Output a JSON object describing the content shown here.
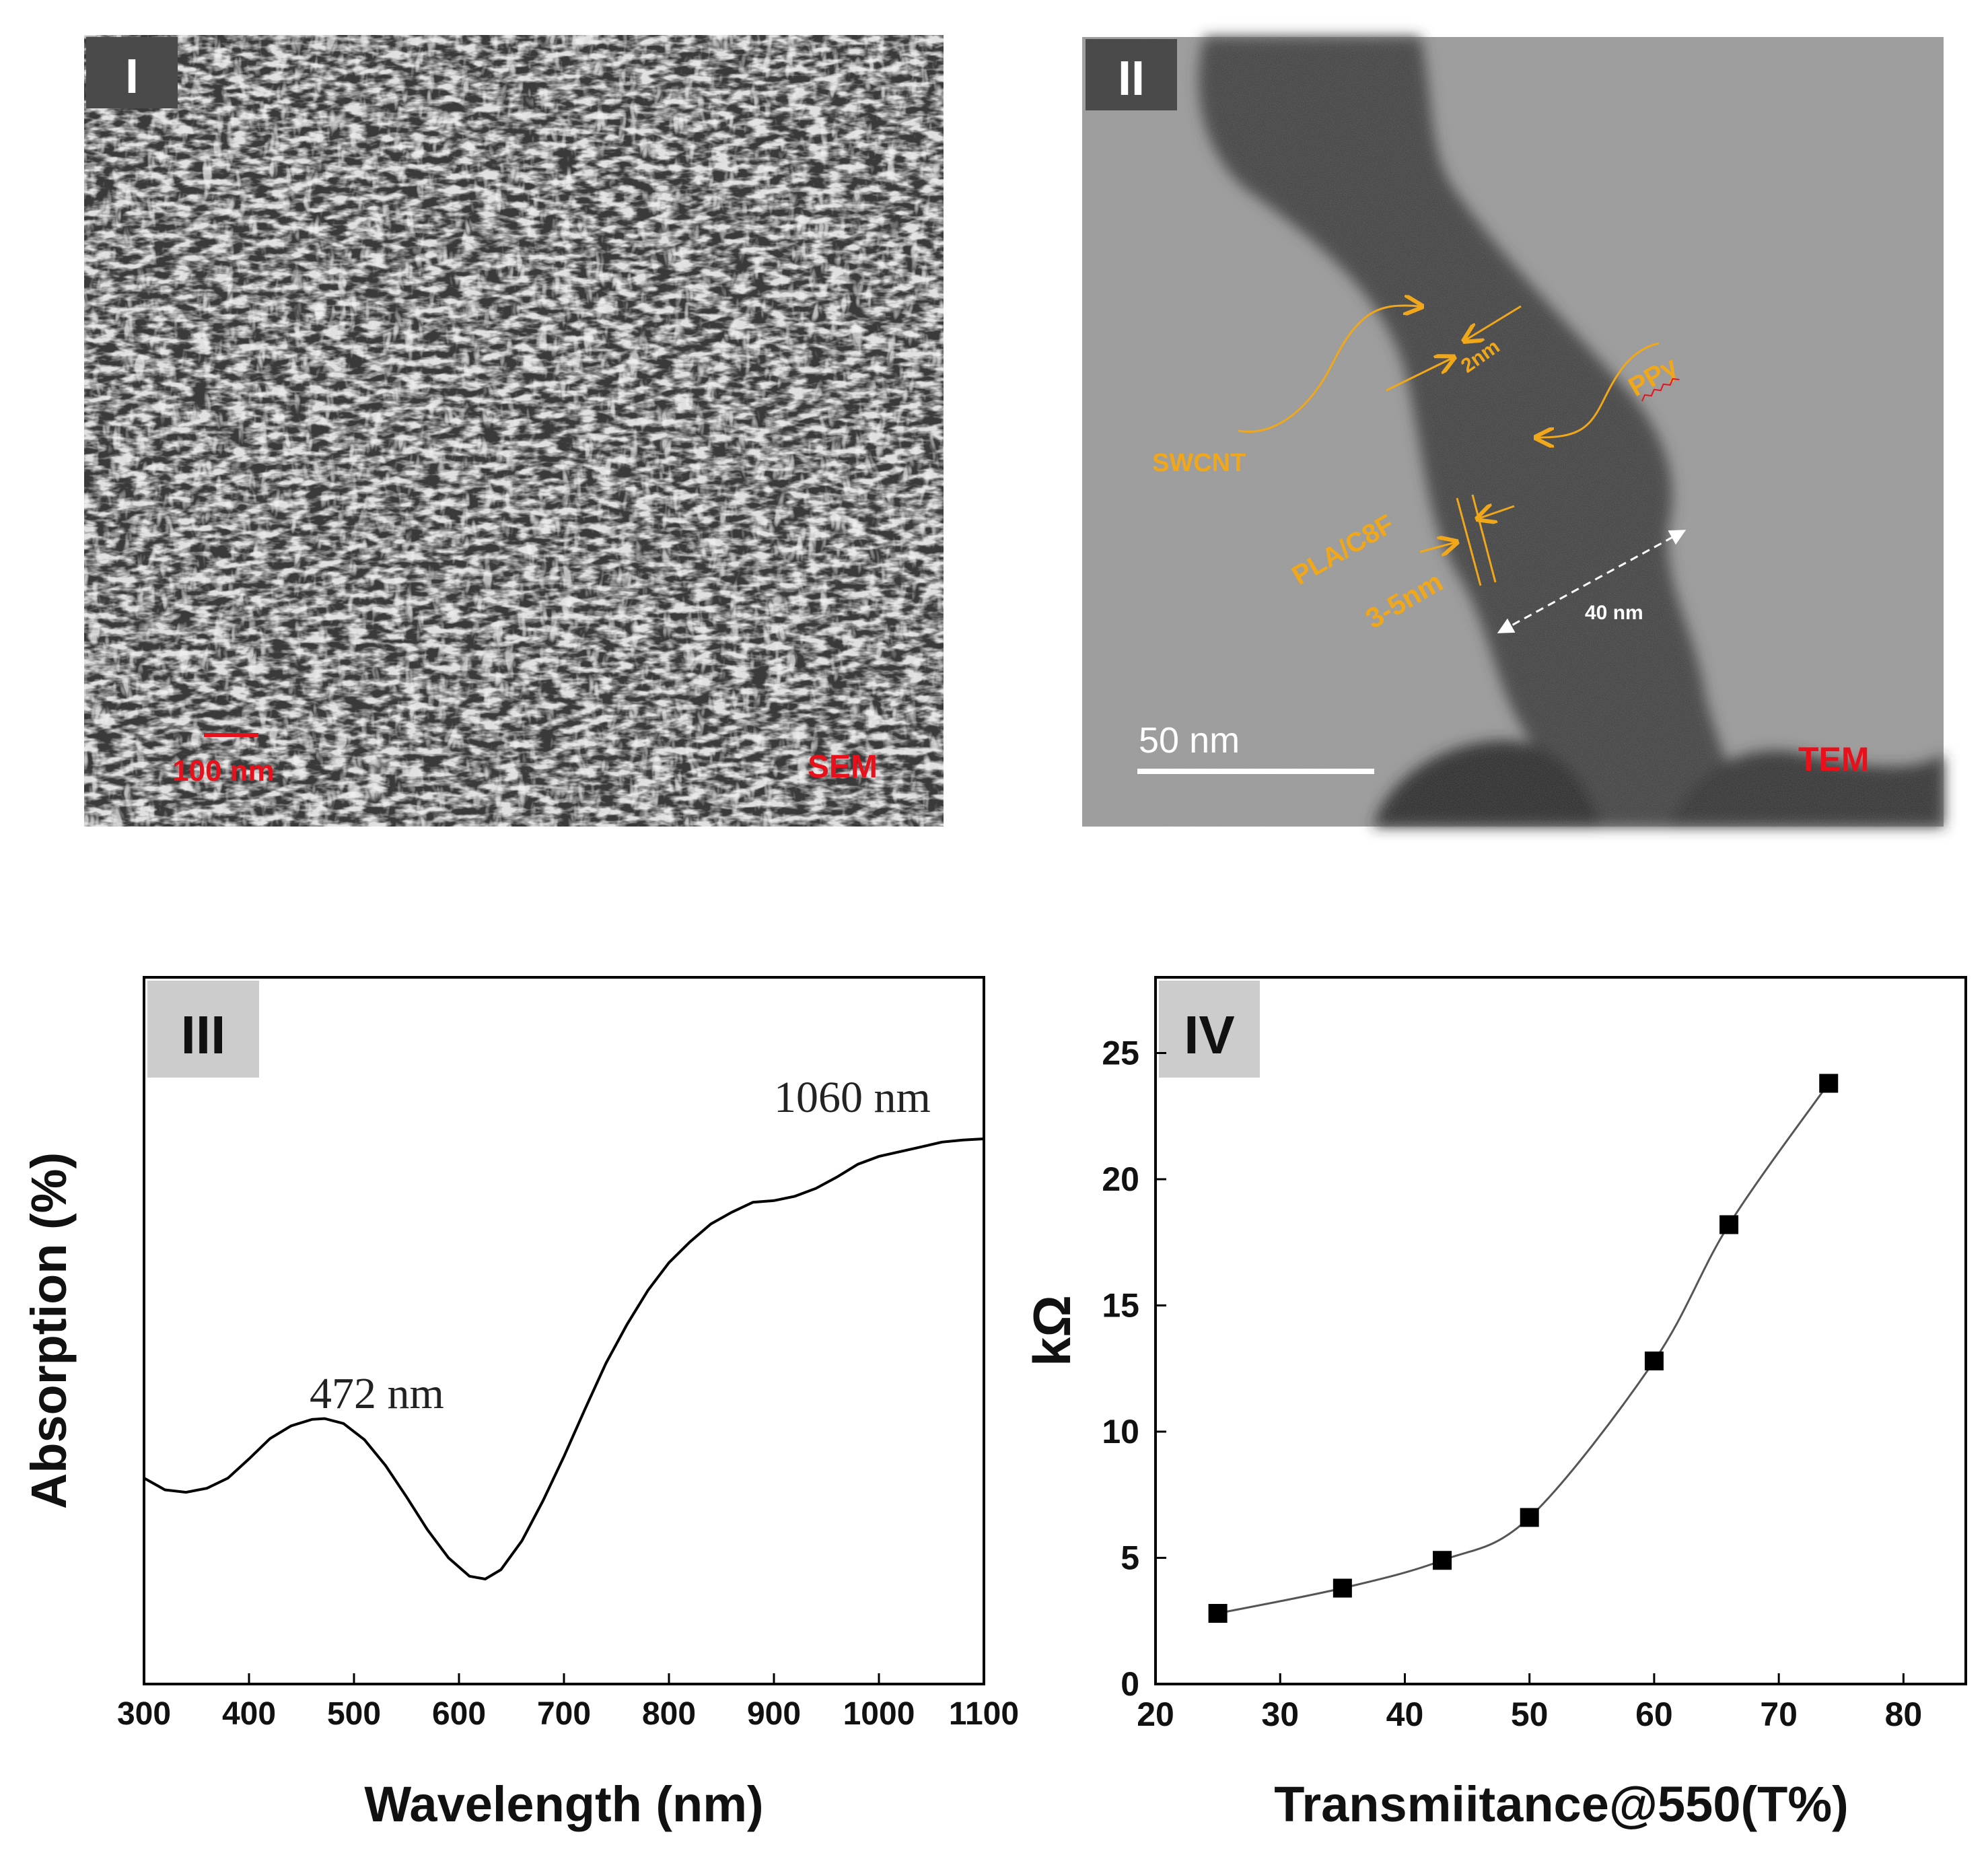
{
  "panels": {
    "p1": {
      "tag": "I",
      "scale_label": "100 nm",
      "mode_label": "SEM"
    },
    "p2": {
      "tag": "II",
      "scale_label": "50 nm",
      "mode_label": "TEM",
      "annotations": {
        "swcnt": "SWCNT",
        "ppy": "PPy",
        "pla": "PLA/C8F",
        "gap_small": "2nm",
        "gap_layer": "3-5nm",
        "width": "40 nm"
      }
    },
    "p3": {
      "tag": "III"
    },
    "p4": {
      "tag": "IV"
    }
  },
  "colors": {
    "label_red": "#e8101a",
    "annotation_orange": "#f0a81a",
    "tag_bg": "#4a4a4a"
  },
  "chart_data": [
    {
      "type": "line",
      "panel": "III",
      "xlabel": "Wavelength (nm)",
      "ylabel": "Absorption (%)",
      "xlim": [
        300,
        1100
      ],
      "x_ticks": [
        300,
        400,
        500,
        600,
        700,
        800,
        900,
        1000,
        1100
      ],
      "y_ticks_shown": false,
      "grid": false,
      "peak_labels": [
        {
          "text": "472 nm",
          "x": 472
        },
        {
          "text": "1060 nm",
          "x": 1060
        }
      ],
      "series": [
        {
          "x": [
            300,
            320,
            340,
            360,
            380,
            400,
            420,
            440,
            460,
            472,
            490,
            510,
            530,
            550,
            570,
            590,
            610,
            625,
            640,
            660,
            680,
            700,
            720,
            740,
            760,
            780,
            800,
            820,
            840,
            860,
            880,
            900,
            920,
            940,
            960,
            980,
            1000,
            1020,
            1040,
            1060,
            1080,
            1100
          ],
          "y": [
            0.317,
            0.288,
            0.282,
            0.292,
            0.317,
            0.364,
            0.414,
            0.445,
            0.461,
            0.463,
            0.451,
            0.411,
            0.348,
            0.271,
            0.19,
            0.121,
            0.076,
            0.069,
            0.092,
            0.163,
            0.261,
            0.37,
            0.486,
            0.599,
            0.694,
            0.778,
            0.846,
            0.897,
            0.941,
            0.97,
            0.989,
            0.999,
            1.015,
            1.034,
            1.056,
            1.082,
            1.101,
            1.118,
            1.13,
            1.142,
            1.147,
            1.15
          ]
        }
      ]
    },
    {
      "type": "line",
      "panel": "IV",
      "xlabel": "Transmiitance@550(T%)",
      "ylabel": "kΩ",
      "xlim": [
        20,
        85
      ],
      "ylim": [
        0,
        28
      ],
      "x_ticks": [
        20,
        30,
        40,
        50,
        60,
        70,
        80
      ],
      "y_ticks": [
        0,
        5,
        10,
        15,
        20,
        25
      ],
      "grid": false,
      "markers": "square",
      "series": [
        {
          "x": [
            25,
            35,
            43,
            50,
            60,
            66,
            74
          ],
          "y": [
            2.8,
            3.8,
            4.9,
            6.6,
            12.8,
            18.2,
            23.8
          ]
        }
      ]
    }
  ]
}
